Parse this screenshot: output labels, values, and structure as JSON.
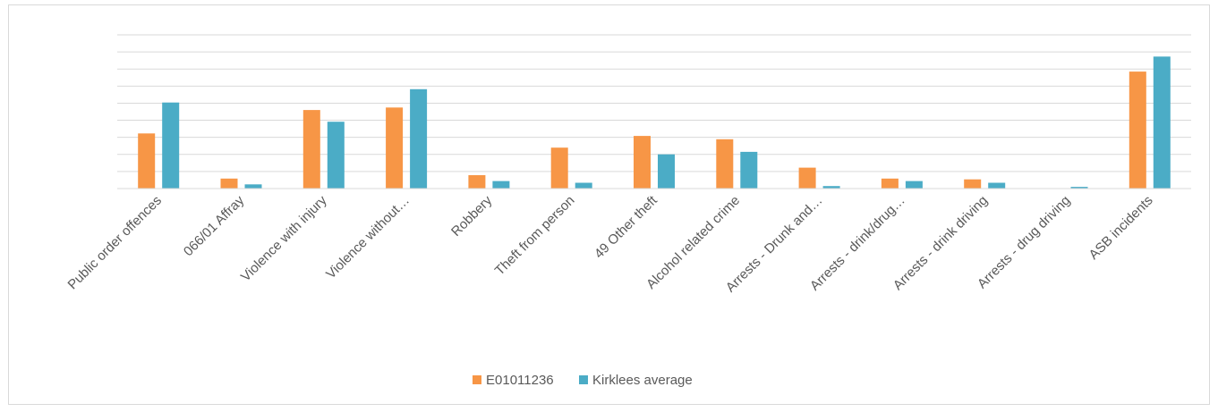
{
  "chart_data": {
    "type": "bar",
    "categories": [
      "Public order offences",
      "066/01 Affray",
      "Violence with injury",
      "Violence without…",
      "Robbery",
      "Theft from person",
      "49 Other theft",
      "Alcohol related crime",
      "Arrests - Drunk and…",
      "Arrests - drink/drug…",
      "Arrests - drink driving",
      "Arrests - drug driving",
      "ASB incidents"
    ],
    "series": [
      {
        "name": "E01011236",
        "color": "#f79646",
        "values": [
          3.3,
          0.6,
          4.7,
          4.85,
          0.8,
          2.45,
          3.15,
          2.95,
          1.25,
          0.6,
          0.55,
          0.0,
          7.0
        ]
      },
      {
        "name": "Kirklees average",
        "color": "#4bacc6",
        "values": [
          5.15,
          0.25,
          4.0,
          5.95,
          0.45,
          0.35,
          2.05,
          2.2,
          0.15,
          0.45,
          0.35,
          0.1,
          7.9
        ]
      }
    ],
    "ylim": [
      0,
      9.2
    ],
    "grid": true,
    "gridline_count": 9,
    "legend_position": "bottom"
  }
}
